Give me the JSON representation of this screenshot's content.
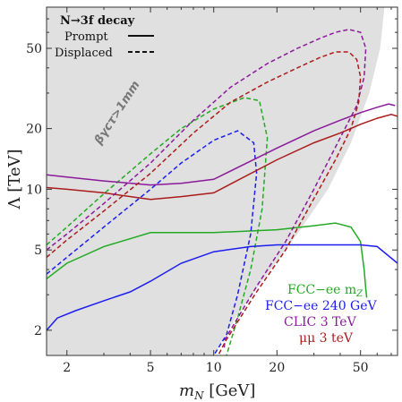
{
  "chart_data": {
    "type": "line",
    "xscale": "log",
    "yscale": "log",
    "xlim": [
      1.6,
      75
    ],
    "ylim": [
      1.5,
      80
    ],
    "xlabel_main": "m",
    "xlabel_sub": "N",
    "xlabel_unit": " [GeV]",
    "ylabel": "Λ [TeV]",
    "xticks": [
      {
        "v": 2,
        "t": "2"
      },
      {
        "v": 5,
        "t": "5"
      },
      {
        "v": 10,
        "t": "10"
      },
      {
        "v": 20,
        "t": "20"
      },
      {
        "v": 50,
        "t": "50"
      }
    ],
    "yticks": [
      {
        "v": 2,
        "t": "2"
      },
      {
        "v": 5,
        "t": "5"
      },
      {
        "v": 10,
        "t": "10"
      },
      {
        "v": 20,
        "t": "20"
      },
      {
        "v": 50,
        "t": "50"
      }
    ],
    "legend": {
      "title": "N→3f decay",
      "prompt": "Prompt",
      "displaced": "Displaced"
    },
    "annotation": "βγcτ>1mm",
    "labels": {
      "fcc_mz_main": "FCC−ee m",
      "fcc_mz_sub": "Z",
      "fcc_240": "FCC−ee 240 GeV",
      "clic": "CLIC 3 TeV",
      "mumu": "μμ 3 teV"
    },
    "shaded_region": [
      [
        1.6,
        80
      ],
      [
        65,
        80
      ],
      [
        62,
        50
      ],
      [
        55,
        30
      ],
      [
        45,
        17
      ],
      [
        35,
        10
      ],
      [
        25,
        6
      ],
      [
        18,
        3.8
      ],
      [
        13,
        2.4
      ],
      [
        10,
        1.5
      ],
      [
        1.6,
        1.5
      ]
    ],
    "series": [
      {
        "key": "fcc_mz",
        "color": "#22aa22",
        "style": "solid",
        "x": [
          1.6,
          2,
          3,
          5,
          10,
          20,
          30,
          38,
          45,
          50,
          52,
          53,
          53.5
        ],
        "y": [
          3.6,
          4.3,
          5.2,
          6.1,
          6.1,
          6.3,
          6.6,
          6.8,
          6.5,
          5.5,
          4.0,
          3.2,
          2.9
        ]
      },
      {
        "key": "fcc_mz",
        "color": "#22aa22",
        "style": "dashed",
        "x": [
          1.6,
          2,
          3,
          5,
          7,
          10,
          14,
          16.5,
          18,
          17,
          15,
          13,
          11.5
        ],
        "y": [
          5.3,
          6.5,
          9.5,
          15,
          20,
          25,
          28.5,
          27.5,
          18,
          8,
          4,
          2.3,
          1.5
        ]
      },
      {
        "key": "fcc_240",
        "color": "#1c1cf0",
        "style": "solid",
        "x": [
          1.6,
          1.8,
          2.2,
          3,
          4,
          5,
          7,
          10,
          15,
          20,
          30,
          50,
          60,
          75
        ],
        "y": [
          2.0,
          2.3,
          2.5,
          2.8,
          3.1,
          3.5,
          4.3,
          4.9,
          5.2,
          5.3,
          5.3,
          5.3,
          5.2,
          4.3
        ]
      },
      {
        "key": "fcc_240",
        "color": "#1c1cf0",
        "style": "dashed",
        "x": [
          1.6,
          2,
          3,
          5,
          7,
          10,
          13,
          15.5,
          16,
          15,
          13,
          11.5,
          10
        ],
        "y": [
          3.8,
          4.6,
          6.5,
          10,
          13.5,
          17.5,
          19.5,
          17,
          12,
          6,
          3,
          1.9,
          1.5
        ]
      },
      {
        "key": "clic",
        "color": "#8a1a9a",
        "style": "solid",
        "x": [
          1.6,
          2,
          3,
          5,
          7,
          10,
          20,
          30,
          40,
          50,
          60,
          68,
          73
        ],
        "y": [
          11.8,
          11.5,
          11,
          10.5,
          10.7,
          11.2,
          16,
          19.5,
          22,
          24,
          25.5,
          26.5,
          26
        ]
      },
      {
        "key": "mumu",
        "color": "#aa1c1c",
        "style": "solid",
        "x": [
          1.6,
          2,
          3,
          5,
          7,
          10,
          20,
          30,
          40,
          50,
          60,
          70,
          75
        ],
        "y": [
          10.2,
          10,
          9.6,
          8.9,
          9.2,
          9.6,
          14,
          17,
          19,
          21,
          22.5,
          23.5,
          23
        ]
      },
      {
        "key": "clic",
        "color": "#8a1a9a",
        "style": "dashed",
        "x": [
          1.6,
          2,
          3,
          5,
          8,
          12,
          18,
          25,
          32,
          38,
          44,
          50,
          53,
          52,
          48,
          40,
          30,
          22,
          16,
          13,
          11.3,
          11.2
        ],
        "y": [
          5.0,
          6.0,
          8.5,
          13.5,
          22,
          32,
          42,
          50,
          56,
          60,
          62,
          60,
          50,
          36,
          26,
          18,
          10,
          5.5,
          3.3,
          2.3,
          1.8,
          1.6
        ]
      },
      {
        "key": "mumu",
        "color": "#aa1c1c",
        "style": "dashed",
        "x": [
          1.6,
          2,
          3,
          5,
          8,
          12,
          18,
          25,
          32,
          38,
          44,
          48,
          50,
          49,
          45,
          38,
          30,
          22,
          16,
          13,
          11.5,
          11,
          10.5
        ],
        "y": [
          4.6,
          5.6,
          7.8,
          12,
          19,
          27,
          34,
          40,
          45,
          48,
          48,
          44,
          36,
          27,
          20,
          14,
          9,
          5,
          3.1,
          2.2,
          1.8,
          1.65,
          1.5
        ]
      }
    ]
  }
}
